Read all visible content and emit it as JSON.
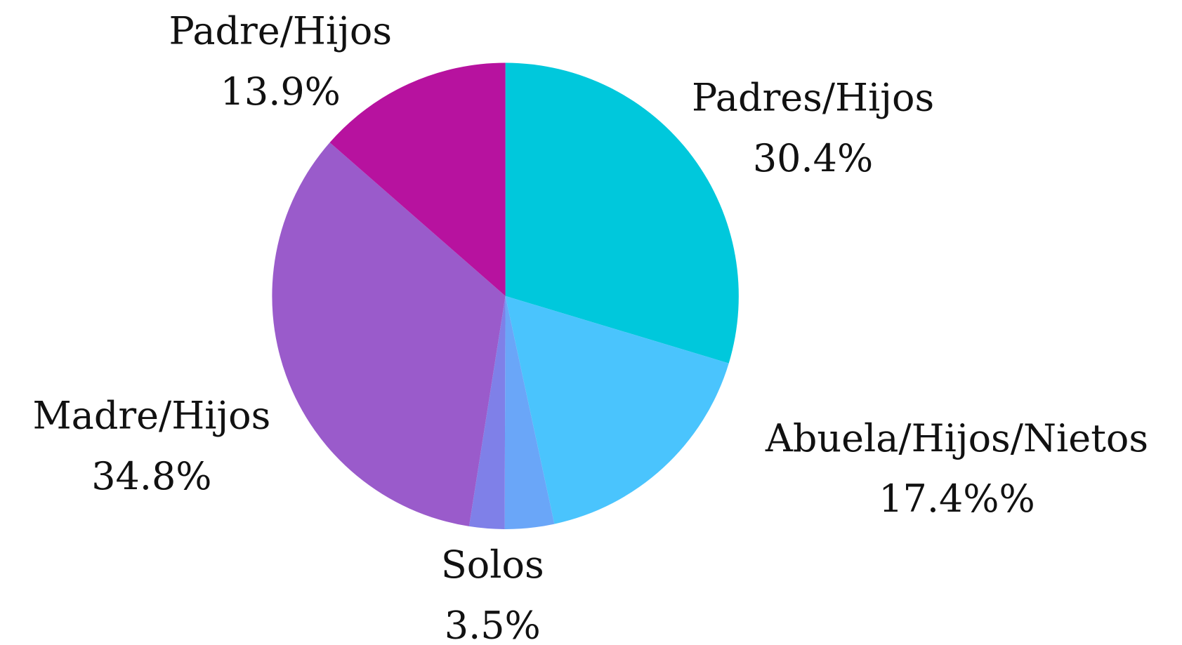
{
  "chart_data": {
    "type": "pie",
    "categories": [
      "Padres/Hijos",
      "Abuela/Hijos/Nietos",
      "Solos",
      null,
      "Madre/Hijos",
      "Padre/Hijos"
    ],
    "values": [
      30.4,
      17.4,
      3.5,
      2.5,
      34.8,
      13.9
    ],
    "value_labels": [
      "30.4%",
      "17.4%%",
      "3.5%",
      null,
      "34.8%",
      "13.9%"
    ],
    "colors": [
      "#00c8dc",
      "#4ac4fd",
      "#6aa6f8",
      "#7f80e8",
      "#9a5bcb",
      "#b7129f"
    ]
  }
}
